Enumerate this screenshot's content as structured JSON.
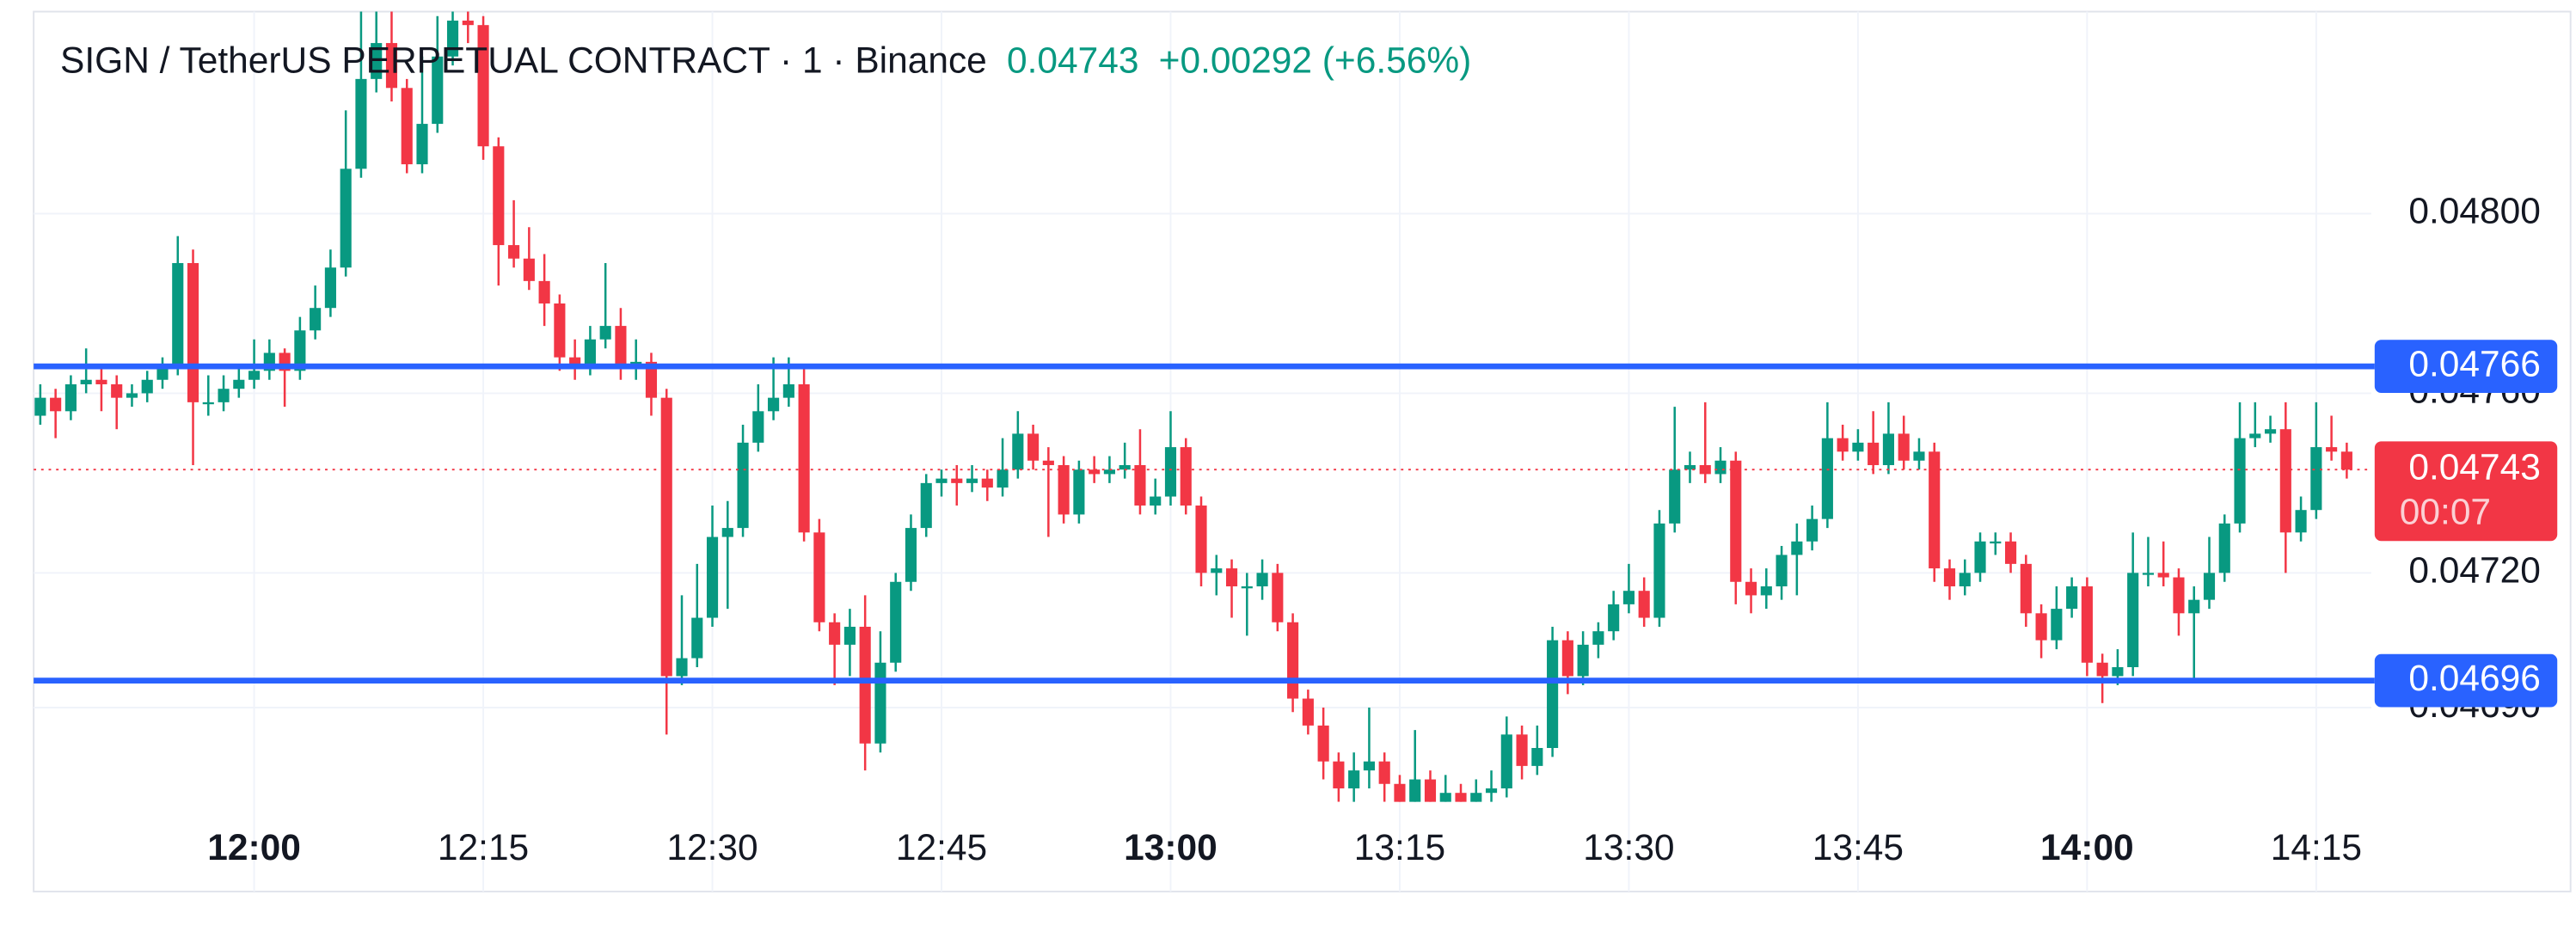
{
  "chart_data": {
    "type": "candlestick",
    "title": "SIGN / TetherUS PERPETUAL CONTRACT · 1 · Binance",
    "last_price": 0.04743,
    "change": "+0.00292 (+6.56%)",
    "countdown": "00:07",
    "x": [
      "11:46",
      "11:47",
      "11:48",
      "11:49",
      "11:50",
      "11:51",
      "11:52",
      "11:53",
      "11:54",
      "11:55",
      "11:56",
      "11:57",
      "11:58",
      "11:59",
      "12:00",
      "12:01",
      "12:02",
      "12:03",
      "12:04",
      "12:05",
      "12:06",
      "12:07",
      "12:08",
      "12:09",
      "12:10",
      "12:11",
      "12:12",
      "12:13",
      "12:14",
      "12:15",
      "12:16",
      "12:17",
      "12:18",
      "12:19",
      "12:20",
      "12:21",
      "12:22",
      "12:23",
      "12:24",
      "12:25",
      "12:26",
      "12:27",
      "12:28",
      "12:29",
      "12:30",
      "12:31",
      "12:32",
      "12:33",
      "12:34",
      "12:35",
      "12:36",
      "12:37",
      "12:38",
      "12:39",
      "12:40",
      "12:41",
      "12:42",
      "12:43",
      "12:44",
      "12:45",
      "12:46",
      "12:47",
      "12:48",
      "12:49",
      "12:50",
      "12:51",
      "12:52",
      "12:53",
      "12:54",
      "12:55",
      "12:56",
      "12:57",
      "12:58",
      "12:59",
      "13:00",
      "13:01",
      "13:02",
      "13:03",
      "13:04",
      "13:05",
      "13:06",
      "13:07",
      "13:08",
      "13:09",
      "13:10",
      "13:11",
      "13:12",
      "13:13",
      "13:14",
      "13:15",
      "13:16",
      "13:17",
      "13:18",
      "13:19",
      "13:20",
      "13:21",
      "13:22",
      "13:23",
      "13:24",
      "13:25",
      "13:26",
      "13:27",
      "13:28",
      "13:29",
      "13:30",
      "13:31",
      "13:32",
      "13:33",
      "13:34",
      "13:35",
      "13:36",
      "13:37",
      "13:38",
      "13:39",
      "13:40",
      "13:41",
      "13:42",
      "13:43",
      "13:44",
      "13:45",
      "13:46",
      "13:47",
      "13:48",
      "13:49",
      "13:50",
      "13:51",
      "13:52",
      "13:53",
      "13:54",
      "13:55",
      "13:56",
      "13:57",
      "13:58",
      "13:59",
      "14:00",
      "14:01",
      "14:02",
      "14:03",
      "14:04",
      "14:05",
      "14:06",
      "14:07",
      "14:08",
      "14:09",
      "14:10",
      "14:11",
      "14:12",
      "14:13",
      "14:14",
      "14:15",
      "14:16",
      "14:17"
    ],
    "open": [
      0.04755,
      0.04759,
      0.04756,
      0.04762,
      0.04763,
      0.04762,
      0.04759,
      0.0476,
      0.04763,
      0.04766,
      0.04789,
      0.04758,
      0.04758,
      0.04761,
      0.04763,
      0.04765,
      0.04769,
      0.04765,
      0.04774,
      0.04779,
      0.04788,
      0.0481,
      0.0483,
      0.04838,
      0.04828,
      0.04811,
      0.0482,
      0.04835,
      0.04843,
      0.04842,
      0.04815,
      0.04793,
      0.0479,
      0.04785,
      0.0478,
      0.04768,
      0.04766,
      0.04772,
      0.04775,
      0.04766,
      0.04767,
      0.04759,
      0.04697,
      0.04701,
      0.0471,
      0.04728,
      0.0473,
      0.04749,
      0.04756,
      0.04759,
      0.04762,
      0.04729,
      0.04709,
      0.04704,
      0.04708,
      0.04682,
      0.047,
      0.04718,
      0.0473,
      0.0474,
      0.04741,
      0.0474,
      0.04741,
      0.04739,
      0.04743,
      0.04751,
      0.04745,
      0.04744,
      0.04733,
      0.04743,
      0.04742,
      0.04743,
      0.04744,
      0.04735,
      0.04737,
      0.04748,
      0.04735,
      0.0472,
      0.04721,
      0.04717,
      0.04717,
      0.0472,
      0.04709,
      0.04692,
      0.04686,
      0.04678,
      0.04672,
      0.04676,
      0.04678,
      0.04673,
      0.04668,
      0.04674,
      0.04668,
      0.04671,
      0.04666,
      0.04671,
      0.04672,
      0.04684,
      0.04677,
      0.04681,
      0.04705,
      0.04697,
      0.04704,
      0.04707,
      0.04713,
      0.04716,
      0.0471,
      0.04731,
      0.04743,
      0.04744,
      0.04742,
      0.04745,
      0.04718,
      0.04715,
      0.04717,
      0.04724,
      0.04727,
      0.04732,
      0.0475,
      0.04747,
      0.04749,
      0.04744,
      0.04751,
      0.04745,
      0.04747,
      0.04721,
      0.04717,
      0.0472,
      0.04727,
      0.04727,
      0.04722,
      0.04711,
      0.04705,
      0.04712,
      0.04717,
      0.047,
      0.04697,
      0.04699,
      0.0472,
      0.0472,
      0.04719,
      0.04711,
      0.04714,
      0.0472,
      0.04731,
      0.0475,
      0.04751,
      0.04752,
      0.04729,
      0.04734,
      0.04748,
      0.04747
    ],
    "high": [
      0.04762,
      0.04761,
      0.04764,
      0.0477,
      0.04766,
      0.04764,
      0.04762,
      0.04765,
      0.04768,
      0.04795,
      0.04792,
      0.04764,
      0.04764,
      0.04766,
      0.04772,
      0.04772,
      0.0477,
      0.04777,
      0.04784,
      0.04792,
      0.04823,
      0.04846,
      0.04846,
      0.04845,
      0.0483,
      0.04835,
      0.04844,
      0.04847,
      0.04846,
      0.04844,
      0.04817,
      0.04803,
      0.04797,
      0.04791,
      0.04782,
      0.04772,
      0.04775,
      0.04789,
      0.04779,
      0.04772,
      0.04769,
      0.04761,
      0.04715,
      0.04722,
      0.04735,
      0.04736,
      0.04753,
      0.04762,
      0.04768,
      0.04768,
      0.04766,
      0.04732,
      0.04711,
      0.04712,
      0.04715,
      0.04707,
      0.0472,
      0.04733,
      0.04742,
      0.04743,
      0.04744,
      0.04744,
      0.04743,
      0.0475,
      0.04756,
      0.04753,
      0.04748,
      0.04746,
      0.04745,
      0.04746,
      0.04746,
      0.04749,
      0.04752,
      0.04741,
      0.04756,
      0.0475,
      0.04737,
      0.04724,
      0.04723,
      0.0472,
      0.04723,
      0.04722,
      0.04711,
      0.04694,
      0.0469,
      0.0468,
      0.0468,
      0.0469,
      0.0468,
      0.04675,
      0.04685,
      0.04676,
      0.04675,
      0.04673,
      0.04674,
      0.04676,
      0.04688,
      0.04686,
      0.04686,
      0.04708,
      0.04707,
      0.04707,
      0.04709,
      0.04716,
      0.04722,
      0.04719,
      0.04734,
      0.04757,
      0.04747,
      0.04758,
      0.04748,
      0.04747,
      0.04721,
      0.04721,
      0.04726,
      0.04731,
      0.04735,
      0.04758,
      0.04753,
      0.04752,
      0.04756,
      0.04758,
      0.04755,
      0.0475,
      0.04749,
      0.04723,
      0.04723,
      0.04729,
      0.04729,
      0.04729,
      0.04724,
      0.04713,
      0.04717,
      0.04719,
      0.04719,
      0.04702,
      0.04703,
      0.04729,
      0.04728,
      0.04727,
      0.04721,
      0.04717,
      0.04728,
      0.04733,
      0.04758,
      0.04758,
      0.04755,
      0.04758,
      0.04737,
      0.04758,
      0.04755,
      0.04749
    ],
    "low": [
      0.04753,
      0.0475,
      0.04754,
      0.0476,
      0.04756,
      0.04752,
      0.04757,
      0.04758,
      0.04761,
      0.04764,
      0.04744,
      0.04755,
      0.04756,
      0.04759,
      0.04761,
      0.04763,
      0.04757,
      0.04763,
      0.04772,
      0.04777,
      0.04786,
      0.04808,
      0.04827,
      0.04825,
      0.04809,
      0.04809,
      0.04818,
      0.04833,
      0.04838,
      0.04812,
      0.04784,
      0.04788,
      0.04783,
      0.04775,
      0.04765,
      0.04763,
      0.04764,
      0.0477,
      0.04763,
      0.04763,
      0.04755,
      0.04684,
      0.04695,
      0.04699,
      0.04708,
      0.04712,
      0.04728,
      0.04747,
      0.04754,
      0.04757,
      0.04727,
      0.04707,
      0.04695,
      0.04697,
      0.04676,
      0.0468,
      0.04698,
      0.04716,
      0.04728,
      0.04737,
      0.04735,
      0.04738,
      0.04736,
      0.04737,
      0.04741,
      0.04743,
      0.04728,
      0.04731,
      0.04731,
      0.0474,
      0.0474,
      0.04741,
      0.04733,
      0.04733,
      0.04735,
      0.04733,
      0.04717,
      0.04715,
      0.0471,
      0.04706,
      0.04714,
      0.04707,
      0.04689,
      0.04684,
      0.04674,
      0.04669,
      0.04668,
      0.04672,
      0.04669,
      0.04664,
      0.04666,
      0.04664,
      0.04664,
      0.04663,
      0.04663,
      0.04668,
      0.0467,
      0.04674,
      0.04675,
      0.04679,
      0.04693,
      0.04695,
      0.04701,
      0.04705,
      0.04711,
      0.04708,
      0.04708,
      0.04729,
      0.0474,
      0.0474,
      0.0474,
      0.04713,
      0.04711,
      0.04712,
      0.04714,
      0.04715,
      0.04725,
      0.0473,
      0.04745,
      0.04745,
      0.04742,
      0.04742,
      0.04743,
      0.04743,
      0.04718,
      0.04714,
      0.04715,
      0.04718,
      0.04724,
      0.0472,
      0.04708,
      0.04701,
      0.04703,
      0.0471,
      0.04697,
      0.04691,
      0.04695,
      0.04697,
      0.04717,
      0.04717,
      0.04706,
      0.04696,
      0.04712,
      0.04718,
      0.04729,
      0.04748,
      0.04749,
      0.0472,
      0.04727,
      0.04732,
      0.04745,
      0.04741
    ],
    "close": [
      0.04759,
      0.04756,
      0.04762,
      0.04763,
      0.04762,
      0.04759,
      0.0476,
      0.04763,
      0.04766,
      0.04789,
      0.04758,
      0.04758,
      0.04761,
      0.04763,
      0.04765,
      0.04769,
      0.04765,
      0.04774,
      0.04779,
      0.04788,
      0.0481,
      0.0483,
      0.04838,
      0.04828,
      0.04811,
      0.0482,
      0.04835,
      0.04843,
      0.04842,
      0.04815,
      0.04793,
      0.0479,
      0.04785,
      0.0478,
      0.04768,
      0.04766,
      0.04772,
      0.04775,
      0.04766,
      0.04767,
      0.04759,
      0.04697,
      0.04701,
      0.0471,
      0.04728,
      0.0473,
      0.04749,
      0.04756,
      0.04759,
      0.04762,
      0.04729,
      0.04709,
      0.04704,
      0.04708,
      0.04682,
      0.047,
      0.04718,
      0.0473,
      0.0474,
      0.04741,
      0.0474,
      0.04741,
      0.04739,
      0.04743,
      0.04751,
      0.04745,
      0.04744,
      0.04733,
      0.04743,
      0.04742,
      0.04743,
      0.04744,
      0.04735,
      0.04737,
      0.04748,
      0.04735,
      0.0472,
      0.04721,
      0.04717,
      0.04717,
      0.0472,
      0.04709,
      0.04692,
      0.04686,
      0.04678,
      0.04672,
      0.04676,
      0.04678,
      0.04673,
      0.04668,
      0.04674,
      0.04668,
      0.04671,
      0.04666,
      0.04671,
      0.04672,
      0.04684,
      0.04677,
      0.04681,
      0.04705,
      0.04697,
      0.04704,
      0.04707,
      0.04713,
      0.04716,
      0.0471,
      0.04731,
      0.04743,
      0.04744,
      0.04742,
      0.04745,
      0.04718,
      0.04715,
      0.04717,
      0.04724,
      0.04727,
      0.04732,
      0.0475,
      0.04747,
      0.04749,
      0.04744,
      0.04751,
      0.04745,
      0.04747,
      0.04721,
      0.04717,
      0.0472,
      0.04727,
      0.04727,
      0.04722,
      0.04711,
      0.04705,
      0.04712,
      0.04717,
      0.047,
      0.04697,
      0.04699,
      0.0472,
      0.0472,
      0.04719,
      0.04711,
      0.04714,
      0.0472,
      0.04731,
      0.0475,
      0.04751,
      0.04752,
      0.04729,
      0.04734,
      0.04748,
      0.04747,
      0.04743
    ],
    "up_color": "#089981",
    "down_color": "#f23645",
    "ylim": [
      0.04669,
      0.04845
    ],
    "yticks": [
      {
        "value": 0.048,
        "label": "0.04800"
      },
      {
        "value": 0.0476,
        "label": "0.04760"
      },
      {
        "value": 0.0472,
        "label": "0.04720"
      },
      {
        "value": 0.0469,
        "label": "0.04690"
      }
    ],
    "xticks": [
      "12:00",
      "12:15",
      "12:30",
      "12:45",
      "13:00",
      "13:15",
      "13:30",
      "13:45",
      "14:00",
      "14:15"
    ],
    "price_lines": [
      {
        "value": 0.04766,
        "color": "#2962ff"
      },
      {
        "value": 0.04696,
        "color": "#2962ff"
      }
    ],
    "grid": true
  }
}
